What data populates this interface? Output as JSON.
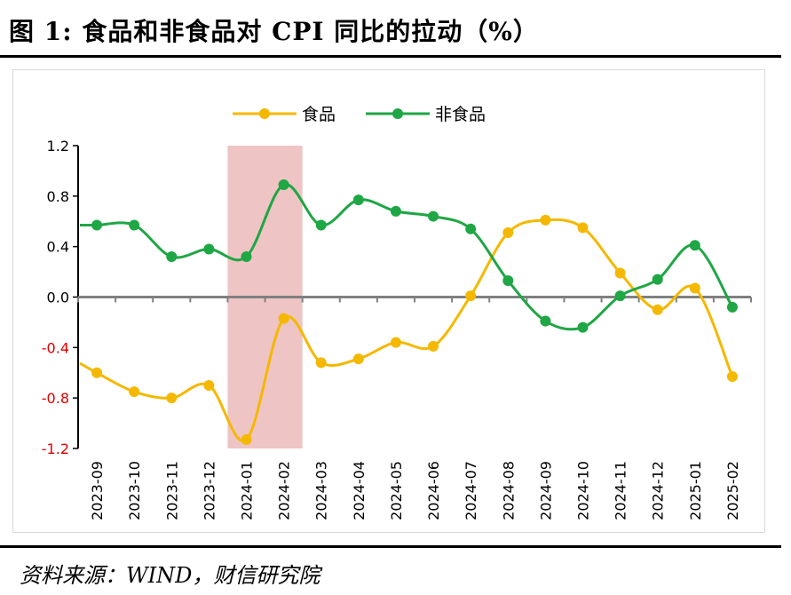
{
  "figure": {
    "title": "图 1:  食品和非食品对 CPI 同比的拉动（%）",
    "source": "资料来源：WIND，财信研究院"
  },
  "colors": {
    "food": "#F5B800",
    "nonfood": "#1FA645",
    "highlight": "#EFC4C4",
    "negative_tick": "#E00000",
    "axis": "#808080"
  },
  "chart_data": {
    "type": "line",
    "categories": [
      "2023-09",
      "2023-10",
      "2023-11",
      "2023-12",
      "2024-01",
      "2024-02",
      "2024-03",
      "2024-04",
      "2024-05",
      "2024-06",
      "2024-07",
      "2024-08",
      "2024-09",
      "2024-10",
      "2024-11",
      "2024-12",
      "2025-01",
      "2025-02"
    ],
    "series": [
      {
        "name": "食品",
        "values": [
          -0.6,
          -0.75,
          -0.8,
          -0.7,
          -1.13,
          -0.17,
          -0.52,
          -0.49,
          -0.36,
          -0.39,
          0.01,
          0.51,
          0.61,
          0.55,
          0.19,
          -0.1,
          0.07,
          -0.63
        ]
      },
      {
        "name": "非食品",
        "values": [
          0.57,
          0.57,
          0.32,
          0.38,
          0.32,
          0.89,
          0.57,
          0.77,
          0.68,
          0.64,
          0.54,
          0.13,
          -0.19,
          -0.24,
          0.01,
          0.14,
          0.41,
          -0.08
        ]
      }
    ],
    "yticks": [
      1.2,
      0.8,
      0.4,
      0.0,
      -0.4,
      -0.8,
      -1.2
    ],
    "ytick_labels": [
      "1.2",
      "0.8",
      "0.4",
      "0.0",
      "-0.4",
      "-0.8",
      "-1.2"
    ],
    "ylim": [
      -1.2,
      1.2
    ],
    "highlight_range": [
      "2024-01",
      "2024-02"
    ],
    "legend_position": "top-center",
    "grid": false
  }
}
